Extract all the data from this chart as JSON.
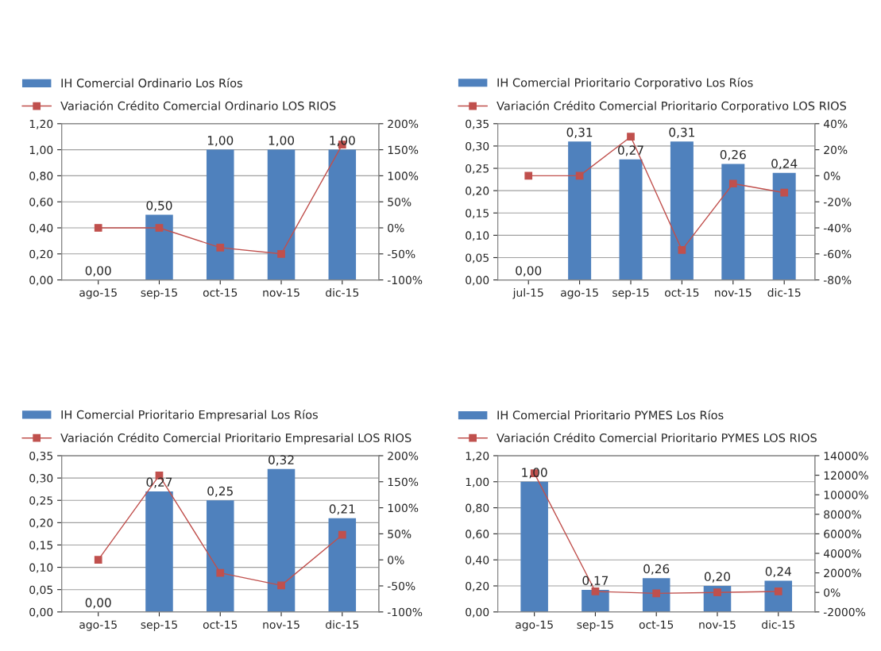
{
  "chart_data": [
    {
      "type": "bar",
      "categories": [
        "ago-15",
        "sep-15",
        "oct-15",
        "nov-15",
        "dic-15"
      ],
      "legend": "top",
      "grid": "y",
      "marker": "square",
      "ylim": [
        0,
        1.2
      ],
      "yticks": [
        {
          "value": 0,
          "label": "0,00"
        },
        {
          "value": 0.2,
          "label": "0,20"
        },
        {
          "value": 0.4,
          "label": "0,40"
        },
        {
          "value": 0.6,
          "label": "0,60"
        },
        {
          "value": 0.8,
          "label": "0,80"
        },
        {
          "value": 1.0,
          "label": "1,00"
        },
        {
          "value": 1.2,
          "label": "1,20"
        }
      ],
      "y2lim": [
        -100,
        200
      ],
      "y2ticks": [
        {
          "value": -100,
          "label": "-100%"
        },
        {
          "value": -50,
          "label": "-50%"
        },
        {
          "value": 0,
          "label": "0%"
        },
        {
          "value": 50,
          "label": "50%"
        },
        {
          "value": 100,
          "label": "100%"
        },
        {
          "value": 150,
          "label": "150%"
        },
        {
          "value": 200,
          "label": "200%"
        }
      ],
      "series": [
        {
          "name": "IH Comercial Ordinario Los Ríos",
          "color": "#4f81bd",
          "values": [
            0,
            0.5,
            1.0,
            1.0,
            1.0
          ],
          "value_labels": [
            "0,00",
            "0,50",
            "1,00",
            "1,00",
            "1,00"
          ]
        },
        {
          "name": "Variación Crédito Comercial Ordinario LOS RIOS",
          "type": "line",
          "axis": "y2",
          "color": "#c0504d",
          "values": [
            0,
            0,
            -38,
            -50,
            160
          ]
        }
      ]
    },
    {
      "type": "bar",
      "categories": [
        "jul-15",
        "ago-15",
        "sep-15",
        "oct-15",
        "nov-15",
        "dic-15"
      ],
      "legend": "top",
      "grid": "y",
      "marker": "square",
      "ylim": [
        0,
        0.35
      ],
      "yticks": [
        {
          "value": 0,
          "label": "0,00"
        },
        {
          "value": 0.05,
          "label": "0,05"
        },
        {
          "value": 0.1,
          "label": "0,10"
        },
        {
          "value": 0.15,
          "label": "0,15"
        },
        {
          "value": 0.2,
          "label": "0,20"
        },
        {
          "value": 0.25,
          "label": "0,25"
        },
        {
          "value": 0.3,
          "label": "0,30"
        },
        {
          "value": 0.35,
          "label": "0,35"
        }
      ],
      "y2lim": [
        -80,
        40
      ],
      "y2ticks": [
        {
          "value": -80,
          "label": "-80%"
        },
        {
          "value": -60,
          "label": "-60%"
        },
        {
          "value": -40,
          "label": "-40%"
        },
        {
          "value": -20,
          "label": "-20%"
        },
        {
          "value": 0,
          "label": "0%"
        },
        {
          "value": 20,
          "label": "20%"
        },
        {
          "value": 40,
          "label": "40%"
        }
      ],
      "series": [
        {
          "name": "IH Comercial Prioritario Corporativo Los Ríos",
          "color": "#4f81bd",
          "values": [
            0,
            0.31,
            0.27,
            0.31,
            0.26,
            0.24
          ],
          "value_labels": [
            "0,00",
            "0,31",
            "0,27",
            "0,31",
            "0,26",
            "0,24"
          ]
        },
        {
          "name": "Variación Crédito Comercial Prioritario Corporativo LOS RIOS",
          "type": "line",
          "axis": "y2",
          "color": "#c0504d",
          "values": [
            0,
            0,
            30,
            -57,
            -6,
            -13
          ]
        }
      ]
    },
    {
      "type": "bar",
      "categories": [
        "ago-15",
        "sep-15",
        "oct-15",
        "nov-15",
        "dic-15"
      ],
      "legend": "top",
      "grid": "y",
      "marker": "square",
      "ylim": [
        0,
        0.35
      ],
      "yticks": [
        {
          "value": 0,
          "label": "0,00"
        },
        {
          "value": 0.05,
          "label": "0,05"
        },
        {
          "value": 0.1,
          "label": "0,10"
        },
        {
          "value": 0.15,
          "label": "0,15"
        },
        {
          "value": 0.2,
          "label": "0,20"
        },
        {
          "value": 0.25,
          "label": "0,25"
        },
        {
          "value": 0.3,
          "label": "0,30"
        },
        {
          "value": 0.35,
          "label": "0,35"
        }
      ],
      "y2lim": [
        -100,
        200
      ],
      "y2ticks": [
        {
          "value": -100,
          "label": "-100%"
        },
        {
          "value": -50,
          "label": "-50%"
        },
        {
          "value": 0,
          "label": "0%"
        },
        {
          "value": 50,
          "label": "50%"
        },
        {
          "value": 100,
          "label": "100%"
        },
        {
          "value": 150,
          "label": "150%"
        },
        {
          "value": 200,
          "label": "200%"
        }
      ],
      "series": [
        {
          "name": "IH Comercial Prioritario Empresarial Los Ríos",
          "color": "#4f81bd",
          "values": [
            0,
            0.27,
            0.25,
            0.32,
            0.21
          ],
          "value_labels": [
            "0,00",
            "0,27",
            "0,25",
            "0,32",
            "0,21"
          ]
        },
        {
          "name": "Variación Crédito Comercial Prioritario Empresarial LOS RIOS",
          "type": "line",
          "axis": "y2",
          "color": "#c0504d",
          "values": [
            0,
            162,
            -25,
            -49,
            48
          ]
        }
      ]
    },
    {
      "type": "bar",
      "categories": [
        "ago-15",
        "sep-15",
        "oct-15",
        "nov-15",
        "dic-15"
      ],
      "legend": "top",
      "grid": "y",
      "marker": "square",
      "ylim": [
        0,
        1.2
      ],
      "yticks": [
        {
          "value": 0,
          "label": "0,00"
        },
        {
          "value": 0.2,
          "label": "0,20"
        },
        {
          "value": 0.4,
          "label": "0,40"
        },
        {
          "value": 0.6,
          "label": "0,60"
        },
        {
          "value": 0.8,
          "label": "0,80"
        },
        {
          "value": 1.0,
          "label": "1,00"
        },
        {
          "value": 1.2,
          "label": "1,20"
        }
      ],
      "y2lim": [
        -2000,
        14000
      ],
      "y2ticks": [
        {
          "value": -2000,
          "label": "-2000%"
        },
        {
          "value": 0,
          "label": "0%"
        },
        {
          "value": 2000,
          "label": "2000%"
        },
        {
          "value": 4000,
          "label": "4000%"
        },
        {
          "value": 6000,
          "label": "6000%"
        },
        {
          "value": 8000,
          "label": "8000%"
        },
        {
          "value": 10000,
          "label": "10000%"
        },
        {
          "value": 12000,
          "label": "12000%"
        },
        {
          "value": 14000,
          "label": "14000%"
        }
      ],
      "series": [
        {
          "name": "IH Comercial Prioritario PYMES Los Ríos",
          "color": "#4f81bd",
          "values": [
            1.0,
            0.17,
            0.26,
            0.2,
            0.24
          ],
          "value_labels": [
            "1,00",
            "0,17",
            "0,26",
            "0,20",
            "0,24"
          ]
        },
        {
          "name": "Variación Crédito Comercial Prioritario PYMES LOS RIOS",
          "type": "line",
          "axis": "y2",
          "color": "#c0504d",
          "values": [
            12200,
            100,
            -100,
            0,
            100
          ]
        }
      ]
    }
  ]
}
